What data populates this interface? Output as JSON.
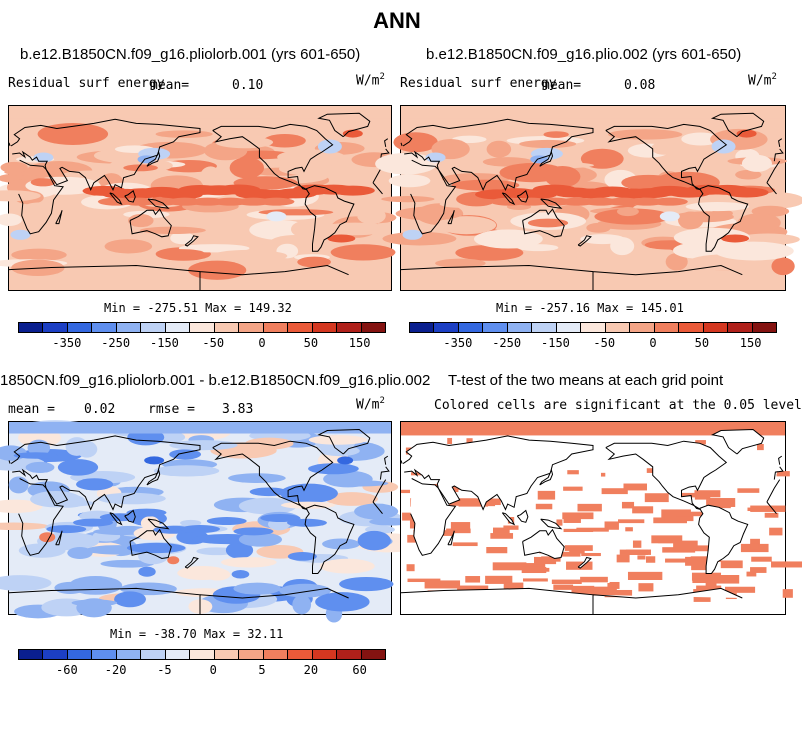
{
  "page_title": "ANN",
  "palette": [
    "#0a1f8f",
    "#1c3fc4",
    "#3468e0",
    "#5f8fef",
    "#8fb2f2",
    "#bed2f5",
    "#e4ebf7",
    "#fbe7dc",
    "#f8c9b2",
    "#f4a587",
    "#f07f5e",
    "#ea5a39",
    "#d43720",
    "#b0201a",
    "#841311"
  ],
  "panels": [
    {
      "title": "b.e12.B1850CN.f09_g16.pliolorb.001 (yrs 601-650)",
      "variable": "Residual surf energy",
      "mean_label": "mean=",
      "mean_value": "0.10",
      "units": "W/m",
      "units_exp": "2",
      "minmax": "Min = -275.51 Max = 149.32",
      "colorbar_ticks": [
        "-350",
        "-250",
        "-150",
        "-50",
        "0",
        "50",
        "150"
      ]
    },
    {
      "title": "b.e12.B1850CN.f09_g16.plio.002 (yrs 601-650)",
      "variable": "Residual surf energy",
      "mean_label": "mean=",
      "mean_value": "0.08",
      "units": "W/m",
      "units_exp": "2",
      "minmax": "Min = -257.16 Max = 145.01",
      "colorbar_ticks": [
        "-350",
        "-250",
        "-150",
        "-50",
        "0",
        "50",
        "150"
      ]
    },
    {
      "title": "1850CN.f09_g16.pliolorb.001 - b.e12.B1850CN.f09_g16.plio.002",
      "mean_label": "mean =",
      "mean_value": "0.02",
      "rmse_label": "rmse =",
      "rmse_value": "3.83",
      "units": "W/m",
      "units_exp": "2",
      "minmax": "Min = -38.70 Max = 32.11",
      "colorbar_ticks": [
        "-60",
        "-20",
        "-5",
        "0",
        "5",
        "20",
        "60"
      ]
    },
    {
      "title": "T-test of the two means at each grid point",
      "subtitle": "Colored cells are significant at the 0.05 level"
    }
  ],
  "chart_data": [
    {
      "type": "heatmap",
      "title": "b.e12.B1850CN.f09_g16.pliolorb.001 (yrs 601-650)",
      "variable": "Residual surf energy",
      "units": "W/m^2",
      "mean": 0.1,
      "min": -275.51,
      "max": 149.32,
      "levels": [
        -350,
        -250,
        -150,
        -50,
        0,
        50,
        150
      ]
    },
    {
      "type": "heatmap",
      "title": "b.e12.B1850CN.f09_g16.plio.002 (yrs 601-650)",
      "variable": "Residual surf energy",
      "units": "W/m^2",
      "mean": 0.08,
      "min": -257.16,
      "max": 145.01,
      "levels": [
        -350,
        -250,
        -150,
        -50,
        0,
        50,
        150
      ]
    },
    {
      "type": "heatmap",
      "title": "1850CN.f09_g16.pliolorb.001 - b.e12.B1850CN.f09_g16.plio.002",
      "units": "W/m^2",
      "mean": 0.02,
      "rmse": 3.83,
      "min": -38.7,
      "max": 32.11,
      "levels": [
        -60,
        -20,
        -5,
        0,
        5,
        20,
        60
      ]
    },
    {
      "type": "heatmap",
      "title": "T-test of the two means at each grid point",
      "subtitle": "Colored cells are significant at the 0.05 level"
    }
  ]
}
